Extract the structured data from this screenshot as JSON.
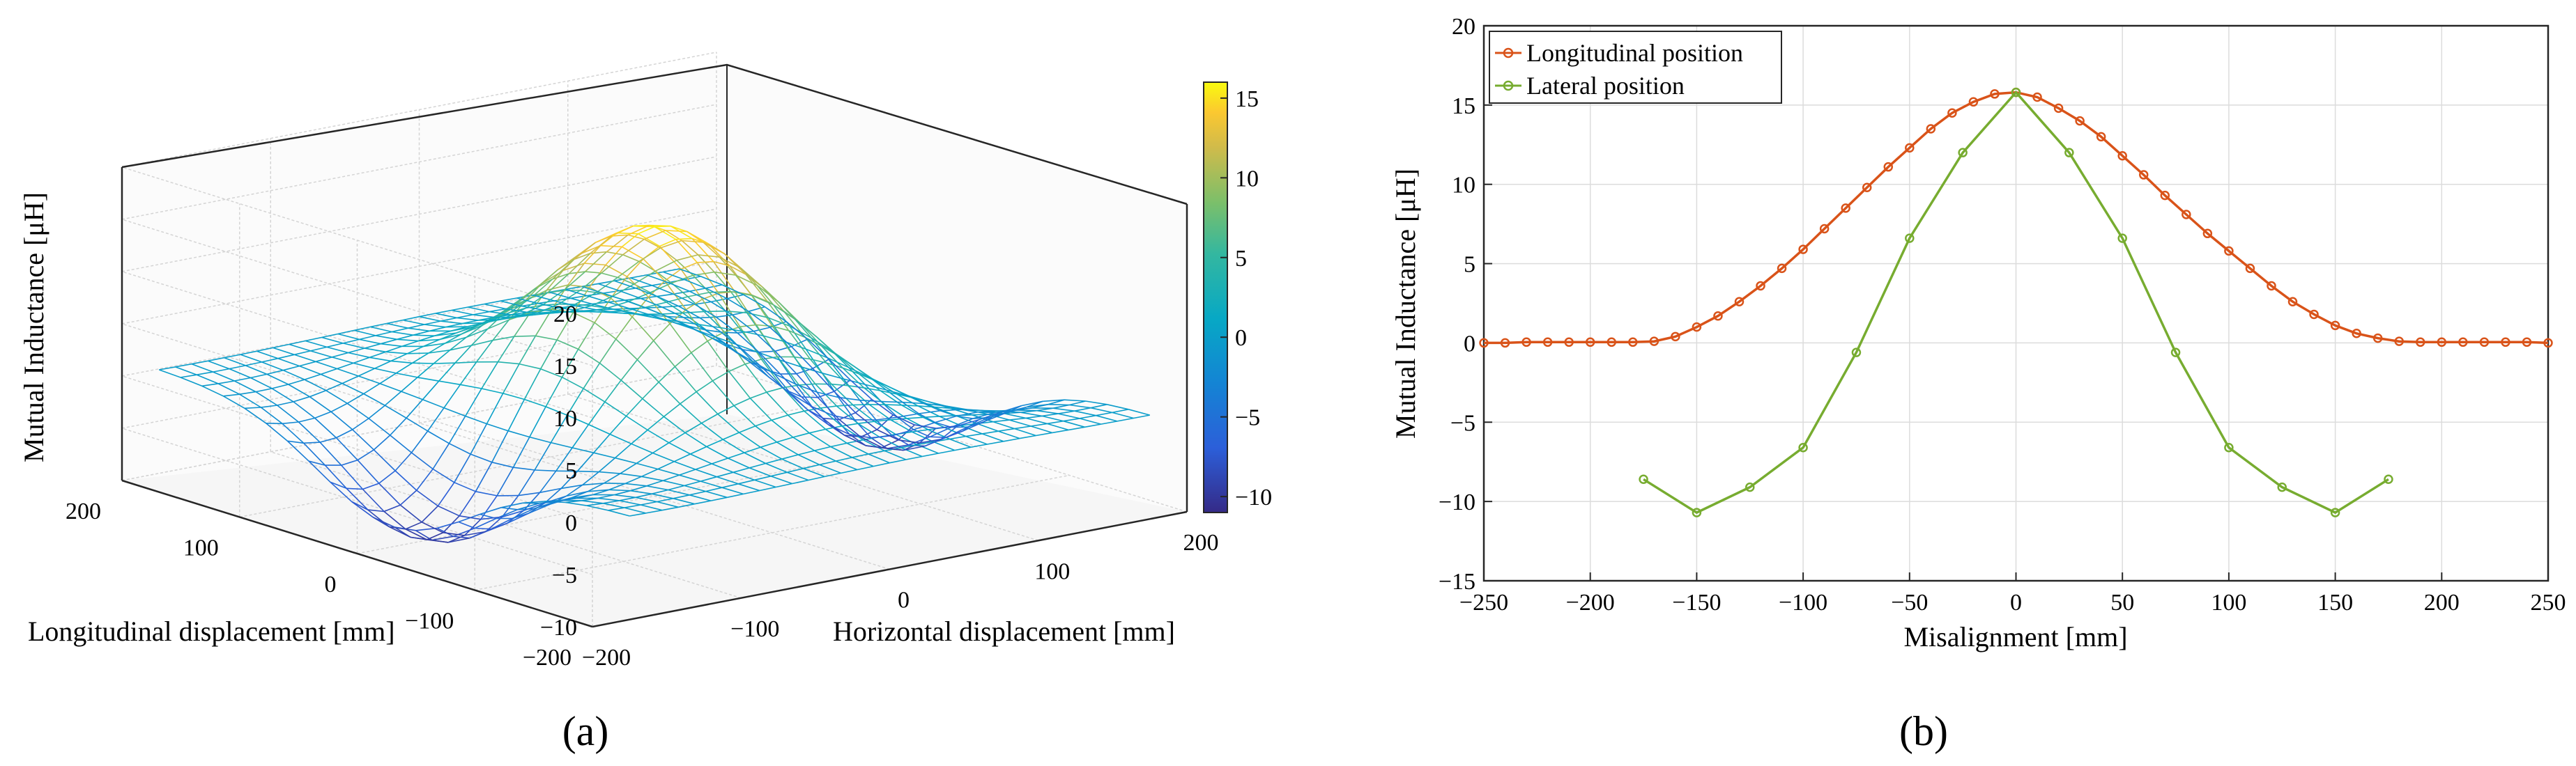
{
  "panel_a_label": "(a)",
  "panel_b_label": "(b)",
  "colors": {
    "longitudinal": "#d95319",
    "lateral": "#77ac30",
    "grid": "#dcdcdc",
    "axis": "#262626"
  },
  "colormap_name": "parula",
  "chart_data": [
    {
      "type": "surface",
      "title": "",
      "xlabel": "Horizontal displacement [mm]",
      "ylabel": "Longitudinal displacement [mm]",
      "zlabel": "Mutual Inductance [μH]",
      "x_ticks": [
        "−200",
        "−100",
        "0",
        "100",
        "200"
      ],
      "y_ticks": [
        "200",
        "100",
        "0",
        "−100",
        "−200"
      ],
      "z_ticks": [
        "−10",
        "−5",
        "0",
        "5",
        "10",
        "15",
        "20"
      ],
      "colorbar_ticks": [
        "−10",
        "−5",
        "0",
        "5",
        "10",
        "15"
      ],
      "xlim": [
        -200,
        200
      ],
      "ylim": [
        -200,
        200
      ],
      "zlim": [
        -10,
        20
      ],
      "clim": [
        -11,
        16
      ],
      "peak_value": 15.8,
      "min_value": -10.7,
      "grid": true
    },
    {
      "type": "line",
      "title": "",
      "xlabel": "Misalignment [mm]",
      "ylabel": "Mutual Inductance [μH]",
      "xlim": [
        -250,
        250
      ],
      "ylim": [
        -15,
        20
      ],
      "x_ticks": [
        "−250",
        "−200",
        "−150",
        "−100",
        "−50",
        "0",
        "50",
        "100",
        "150",
        "200",
        "250"
      ],
      "y_ticks": [
        "−15",
        "−10",
        "−5",
        "0",
        "5",
        "10",
        "15",
        "20"
      ],
      "grid": true,
      "legend_position": "top-left",
      "series": [
        {
          "name": "Longitudinal position",
          "x": [
            -250,
            -240,
            -230,
            -220,
            -210,
            -200,
            -190,
            -180,
            -170,
            -160,
            -150,
            -140,
            -130,
            -120,
            -110,
            -100,
            -90,
            -80,
            -70,
            -60,
            -50,
            -40,
            -30,
            -20,
            -10,
            0,
            10,
            20,
            30,
            40,
            50,
            60,
            70,
            80,
            90,
            100,
            110,
            120,
            130,
            140,
            150,
            160,
            170,
            180,
            190,
            200,
            210,
            220,
            230,
            240,
            250
          ],
          "y": [
            0,
            0,
            0.05,
            0.05,
            0.05,
            0.05,
            0.05,
            0.05,
            0.1,
            0.4,
            1.0,
            1.7,
            2.6,
            3.6,
            4.7,
            5.9,
            7.2,
            8.5,
            9.8,
            11.1,
            12.3,
            13.5,
            14.5,
            15.2,
            15.7,
            15.8,
            15.5,
            14.8,
            14.0,
            13.0,
            11.8,
            10.6,
            9.3,
            8.1,
            6.9,
            5.8,
            4.7,
            3.6,
            2.6,
            1.8,
            1.1,
            0.6,
            0.3,
            0.1,
            0.05,
            0.05,
            0.05,
            0.05,
            0.05,
            0.05,
            0
          ]
        },
        {
          "name": "Lateral position",
          "x": [
            -175,
            -150,
            -125,
            -100,
            -75,
            -50,
            -25,
            0,
            25,
            50,
            75,
            100,
            125,
            150,
            175
          ],
          "y": [
            -8.6,
            -10.7,
            -9.1,
            -6.6,
            -0.6,
            6.6,
            12.0,
            15.8,
            12.0,
            6.6,
            -0.6,
            -6.6,
            -9.1,
            -10.7,
            -8.6
          ]
        }
      ]
    }
  ]
}
